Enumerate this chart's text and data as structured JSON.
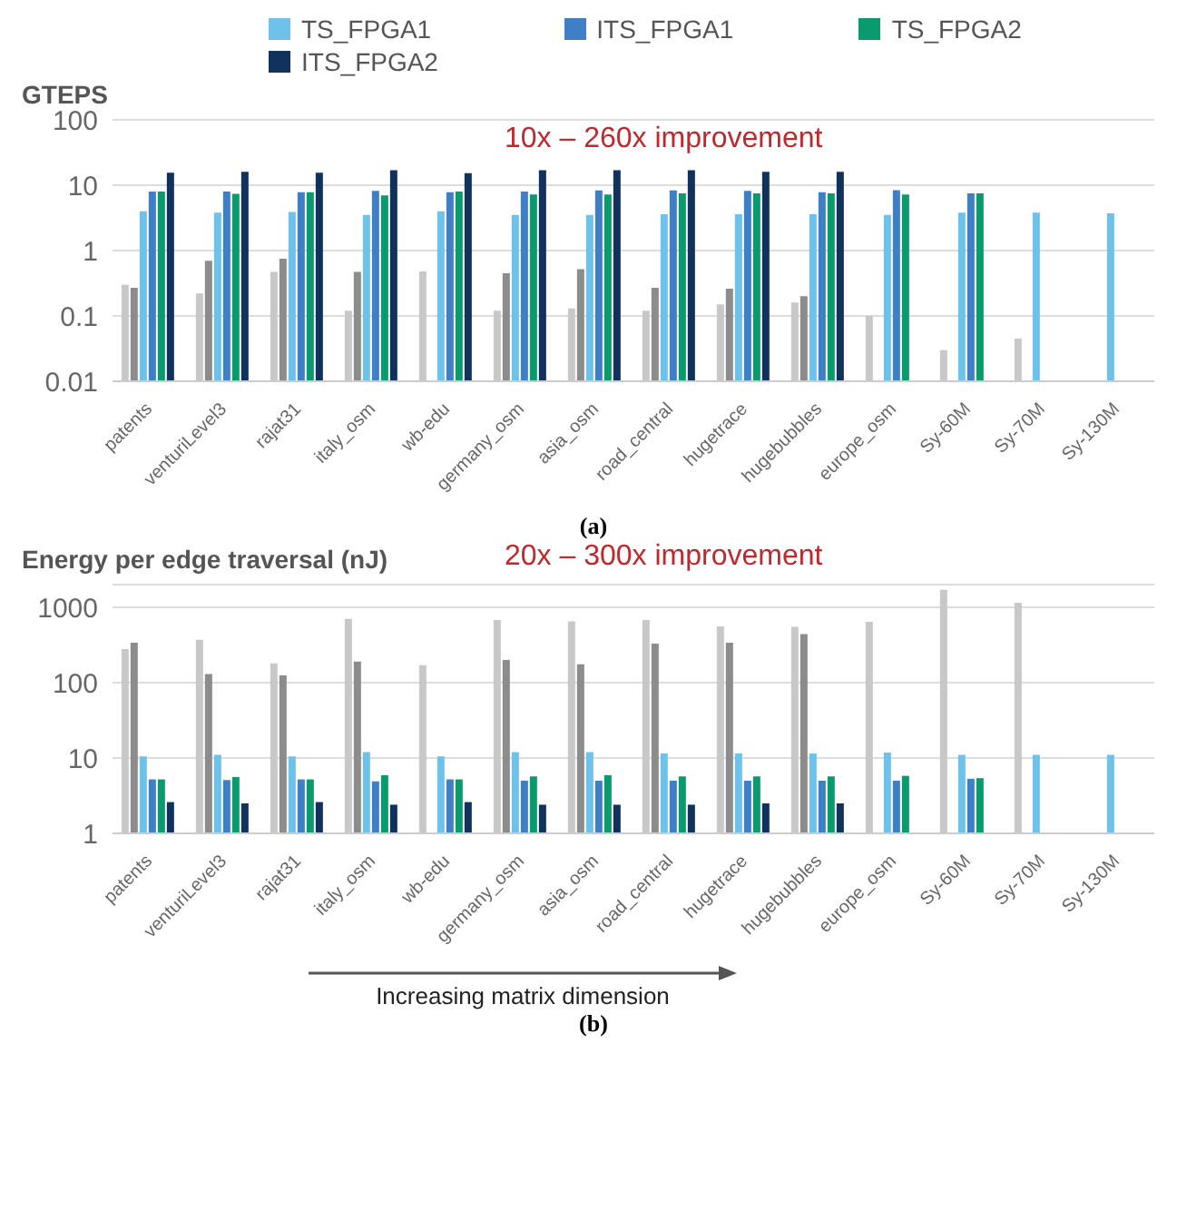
{
  "chart_data": [
    {
      "type": "bar",
      "ylabel": "GTEPS",
      "log": "y",
      "grid": "y",
      "legend": "top",
      "ylim": [
        0.01,
        100
      ],
      "yticks": [
        0.01,
        0.1,
        1,
        10,
        100
      ],
      "annotations": [
        "10x – 260x improvement",
        "(a)"
      ],
      "categories": [
        "patents",
        "venturiLevel3",
        "rajat31",
        "italy_osm",
        "wb-edu",
        "germany_osm",
        "asia_osm",
        "road_central",
        "hugetrace",
        "hugebubbles",
        "europe_osm",
        "Sy-60M",
        "Sy-70M",
        "Sy-130M"
      ],
      "series": [
        {
          "color": "#c8c8c8",
          "values": [
            0.3,
            0.22,
            0.47,
            0.12,
            0.48,
            0.12,
            0.13,
            0.12,
            0.15,
            0.16,
            0.1,
            0.03,
            0.045,
            null
          ]
        },
        {
          "color": "#8c8c8c",
          "values": [
            0.27,
            0.7,
            0.75,
            0.47,
            null,
            0.45,
            0.52,
            0.27,
            0.26,
            0.2,
            null,
            null,
            null,
            null
          ]
        },
        {
          "name": "TS_FPGA1",
          "color": "#6ec1e8",
          "values": [
            4,
            3.8,
            3.9,
            3.5,
            4,
            3.5,
            3.5,
            3.6,
            3.6,
            3.6,
            3.5,
            3.8,
            3.8,
            3.7
          ]
        },
        {
          "name": "ITS_FPGA1",
          "color": "#3f7fc4",
          "values": [
            8,
            8,
            7.8,
            8.2,
            7.8,
            8,
            8.3,
            8.3,
            8.2,
            7.8,
            8.4,
            7.5,
            null,
            null
          ]
        },
        {
          "name": "TS_FPGA2",
          "color": "#0a9a6e",
          "values": [
            8,
            7.4,
            7.8,
            7,
            8,
            7.2,
            7.2,
            7.5,
            7.5,
            7.5,
            7.2,
            7.5,
            null,
            null
          ]
        },
        {
          "name": "ITS_FPGA2",
          "color": "#12325e",
          "values": [
            15.5,
            16,
            15.5,
            17,
            15.3,
            17,
            17,
            17,
            16,
            16,
            null,
            null,
            null,
            null
          ]
        }
      ]
    },
    {
      "type": "bar",
      "ylabel": "Energy per edge traversal (nJ)",
      "log": "y",
      "grid": "y",
      "ylim": [
        1,
        2000
      ],
      "yticks": [
        1,
        10,
        100,
        1000
      ],
      "annotations": [
        "20x – 300x improvement",
        "Increasing matrix dimension",
        "(b)"
      ],
      "categories": [
        "patents",
        "venturiLevel3",
        "rajat31",
        "italy_osm",
        "wb-edu",
        "germany_osm",
        "asia_osm",
        "road_central",
        "hugetrace",
        "hugebubbles",
        "europe_osm",
        "Sy-60M",
        "Sy-70M",
        "Sy-130M"
      ],
      "series": [
        {
          "color": "#c8c8c8",
          "values": [
            280,
            370,
            180,
            700,
            170,
            680,
            650,
            680,
            560,
            550,
            640,
            1700,
            1150,
            null
          ]
        },
        {
          "color": "#8c8c8c",
          "values": [
            340,
            130,
            125,
            190,
            null,
            200,
            175,
            330,
            340,
            440,
            null,
            null,
            null,
            null
          ]
        },
        {
          "color": "#6ec1e8",
          "values": [
            10.5,
            11,
            10.5,
            12,
            10.5,
            12,
            12,
            11.5,
            11.5,
            11.5,
            11.8,
            11,
            11,
            11
          ]
        },
        {
          "color": "#3f7fc4",
          "values": [
            5.2,
            5.1,
            5.2,
            4.9,
            5.2,
            5,
            5,
            5,
            5,
            5,
            5,
            5.3,
            null,
            null
          ]
        },
        {
          "color": "#0a9a6e",
          "values": [
            5.2,
            5.6,
            5.2,
            5.9,
            5.2,
            5.7,
            5.9,
            5.7,
            5.7,
            5.7,
            5.8,
            5.4,
            null,
            null
          ]
        },
        {
          "color": "#12325e",
          "values": [
            2.6,
            2.5,
            2.6,
            2.4,
            2.6,
            2.4,
            2.4,
            2.4,
            2.5,
            2.5,
            null,
            null,
            null,
            null
          ]
        }
      ]
    }
  ]
}
